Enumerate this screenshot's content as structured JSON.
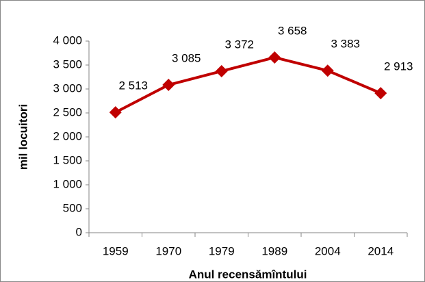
{
  "chart_data": {
    "type": "line",
    "x_label": "Anul recensămîntului",
    "y_label": "mil locuitori",
    "categories": [
      "1959",
      "1970",
      "1979",
      "1989",
      "2004",
      "2014"
    ],
    "series": [
      {
        "color": "#c00000",
        "values": [
          2513,
          3085,
          3372,
          3658,
          3383,
          2913
        ],
        "value_labels": [
          "2 513",
          "3 085",
          "3 372",
          "3 658",
          "3 383",
          "2 913"
        ]
      }
    ],
    "ylim": [
      0,
      4000
    ],
    "yticks": [
      0,
      500,
      {
        "value": 1000,
        "label": "1 000"
      },
      {
        "value": 1500,
        "label": "1 500"
      },
      {
        "value": 2000,
        "label": "2 000"
      },
      {
        "value": 2500,
        "label": "2 500"
      },
      {
        "value": 3000,
        "label": "3 000"
      },
      {
        "value": 3500,
        "label": "3 500"
      },
      {
        "value": 4000,
        "label": "4 000"
      }
    ],
    "grid": false
  }
}
